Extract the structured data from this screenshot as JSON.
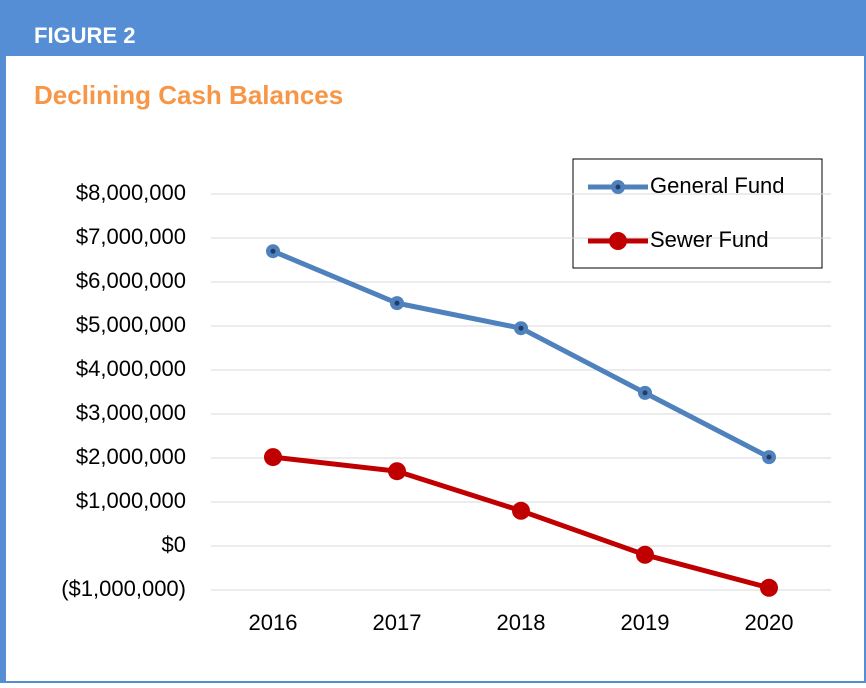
{
  "header": {
    "label": "FIGURE 2"
  },
  "chart_data": {
    "type": "line",
    "title": "Declining Cash Balances",
    "categories": [
      "2016",
      "2017",
      "2018",
      "2019",
      "2020"
    ],
    "series": [
      {
        "name": "General Fund",
        "color": "#4f81bd",
        "values": [
          6700000,
          5520000,
          4950000,
          3480000,
          2020000
        ]
      },
      {
        "name": "Sewer Fund",
        "color": "#c00000",
        "values": [
          2020000,
          1700000,
          800000,
          -200000,
          -950000
        ]
      }
    ],
    "ylim": [
      -1000000,
      8000000
    ],
    "yticks": [
      {
        "value": -1000000,
        "label": "($1,000,000)"
      },
      {
        "value": 0,
        "label": "$0"
      },
      {
        "value": 1000000,
        "label": "$1,000,000"
      },
      {
        "value": 2000000,
        "label": "$2,000,000"
      },
      {
        "value": 3000000,
        "label": "$3,000,000"
      },
      {
        "value": 4000000,
        "label": "$4,000,000"
      },
      {
        "value": 5000000,
        "label": "$5,000,000"
      },
      {
        "value": 6000000,
        "label": "$6,000,000"
      },
      {
        "value": 7000000,
        "label": "$7,000,000"
      },
      {
        "value": 8000000,
        "label": "$8,000,000"
      }
    ],
    "grid": true,
    "legend": "top-right"
  }
}
